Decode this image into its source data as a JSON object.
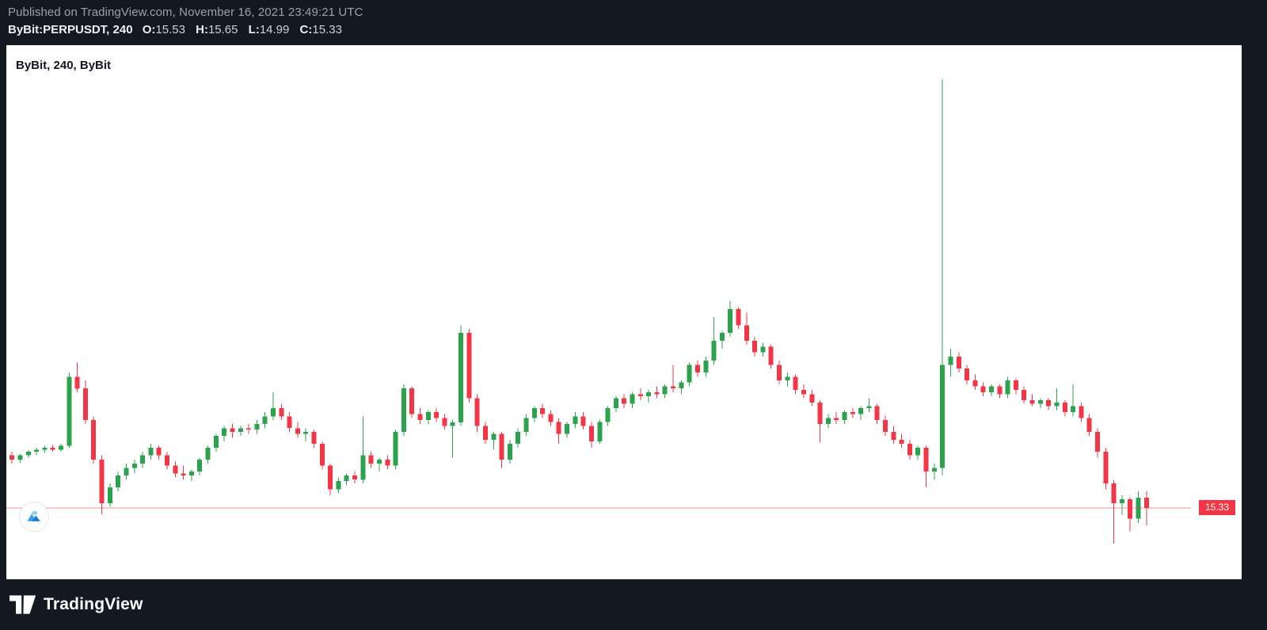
{
  "header": {
    "published_line": "Published on TradingView.com, November 16, 2021 23:49:21 UTC",
    "symbol": "ByBit:PERPUSDT, 240",
    "ohlc": {
      "o_label": "O:",
      "o_value": "15.53",
      "h_label": "H:",
      "h_value": "15.65",
      "l_label": "L:",
      "l_value": "14.99",
      "c_label": "C:",
      "c_value": "15.33"
    }
  },
  "chart": {
    "legend": "ByBit, 240, ByBit",
    "price_label": "15.33"
  },
  "footer": {
    "brand": "TradingView"
  },
  "icons": {
    "chart_logo": "tradingview-mountain-icon",
    "footer_logo": "tradingview-mark-icon"
  },
  "colors": {
    "up": "#2ba24c",
    "down": "#f23645",
    "price_line": "#f23645",
    "background": "#141820",
    "chart_bg": "#ffffff",
    "label_text": "#ffffff"
  },
  "chart_data": {
    "type": "candlestick",
    "title": "ByBit, 240, ByBit",
    "symbol": "ByBit:PERPUSDT",
    "exchange": "ByBit",
    "interval_minutes": 240,
    "published": "November 16, 2021 23:49:21 UTC",
    "last_candle": {
      "open": 15.53,
      "high": 15.65,
      "low": 14.99,
      "close": 15.33
    },
    "price_line": 15.33,
    "ylim": [
      14.3,
      23.9
    ],
    "grid": false,
    "legend_position": "top-left",
    "candles": [
      [
        16.35,
        16.42,
        16.19,
        16.27
      ],
      [
        16.27,
        16.38,
        16.21,
        16.35
      ],
      [
        16.35,
        16.46,
        16.3,
        16.42
      ],
      [
        16.42,
        16.5,
        16.35,
        16.46
      ],
      [
        16.46,
        16.54,
        16.4,
        16.5
      ],
      [
        16.5,
        16.55,
        16.42,
        16.46
      ],
      [
        16.46,
        16.58,
        16.42,
        16.54
      ],
      [
        16.54,
        17.96,
        16.5,
        17.88
      ],
      [
        17.88,
        18.15,
        17.58,
        17.65
      ],
      [
        17.65,
        17.81,
        16.96,
        17.04
      ],
      [
        17.04,
        17.11,
        16.19,
        16.27
      ],
      [
        16.27,
        16.35,
        15.21,
        15.42
      ],
      [
        15.42,
        15.81,
        15.35,
        15.73
      ],
      [
        15.73,
        16.04,
        15.65,
        15.96
      ],
      [
        15.96,
        16.19,
        15.88,
        16.11
      ],
      [
        16.11,
        16.27,
        16.0,
        16.19
      ],
      [
        16.19,
        16.42,
        16.11,
        16.35
      ],
      [
        16.35,
        16.58,
        16.27,
        16.5
      ],
      [
        16.5,
        16.54,
        16.27,
        16.35
      ],
      [
        16.35,
        16.42,
        16.08,
        16.15
      ],
      [
        16.15,
        16.23,
        15.92,
        16.0
      ],
      [
        16.0,
        16.15,
        15.88,
        15.96
      ],
      [
        15.96,
        16.08,
        15.85,
        16.04
      ],
      [
        16.04,
        16.31,
        15.96,
        16.27
      ],
      [
        16.27,
        16.54,
        16.19,
        16.5
      ],
      [
        16.5,
        16.77,
        16.42,
        16.73
      ],
      [
        16.73,
        16.92,
        16.62,
        16.88
      ],
      [
        16.88,
        16.96,
        16.69,
        16.81
      ],
      [
        16.81,
        16.92,
        16.73,
        16.88
      ],
      [
        16.88,
        16.96,
        16.77,
        16.85
      ],
      [
        16.85,
        17.04,
        16.77,
        16.96
      ],
      [
        16.96,
        17.19,
        16.88,
        17.11
      ],
      [
        17.11,
        17.58,
        17.04,
        17.27
      ],
      [
        17.27,
        17.35,
        17.04,
        17.11
      ],
      [
        17.11,
        17.19,
        16.81,
        16.88
      ],
      [
        16.88,
        17.0,
        16.69,
        16.77
      ],
      [
        16.77,
        16.88,
        16.62,
        16.81
      ],
      [
        16.81,
        16.85,
        16.5,
        16.58
      ],
      [
        16.58,
        16.62,
        16.08,
        16.15
      ],
      [
        16.15,
        16.19,
        15.58,
        15.69
      ],
      [
        15.69,
        15.92,
        15.62,
        15.85
      ],
      [
        15.85,
        16.0,
        15.77,
        15.96
      ],
      [
        15.96,
        16.04,
        15.81,
        15.88
      ],
      [
        15.88,
        17.11,
        15.81,
        16.35
      ],
      [
        16.35,
        16.42,
        16.11,
        16.19
      ],
      [
        16.19,
        16.31,
        16.04,
        16.27
      ],
      [
        16.27,
        16.35,
        16.08,
        16.15
      ],
      [
        16.15,
        16.85,
        16.08,
        16.81
      ],
      [
        16.81,
        17.73,
        16.73,
        17.65
      ],
      [
        17.65,
        17.69,
        17.08,
        17.15
      ],
      [
        17.15,
        17.27,
        16.96,
        17.04
      ],
      [
        17.04,
        17.23,
        16.96,
        17.19
      ],
      [
        17.19,
        17.27,
        17.0,
        17.08
      ],
      [
        17.08,
        17.15,
        16.85,
        16.92
      ],
      [
        16.92,
        17.04,
        16.31,
        16.99
      ],
      [
        16.99,
        18.88,
        16.92,
        18.73
      ],
      [
        18.73,
        18.81,
        17.38,
        17.46
      ],
      [
        17.46,
        17.54,
        16.81,
        16.92
      ],
      [
        16.92,
        17.0,
        16.58,
        16.65
      ],
      [
        16.65,
        16.81,
        16.46,
        16.77
      ],
      [
        16.77,
        16.81,
        16.11,
        16.27
      ],
      [
        16.27,
        16.65,
        16.19,
        16.58
      ],
      [
        16.58,
        16.88,
        16.5,
        16.81
      ],
      [
        16.81,
        17.15,
        16.73,
        17.08
      ],
      [
        17.08,
        17.31,
        17.0,
        17.27
      ],
      [
        17.27,
        17.35,
        17.08,
        17.15
      ],
      [
        17.15,
        17.23,
        16.92,
        17.0
      ],
      [
        17.0,
        17.08,
        16.58,
        16.77
      ],
      [
        16.77,
        17.0,
        16.69,
        16.96
      ],
      [
        16.96,
        17.19,
        16.88,
        17.11
      ],
      [
        17.11,
        17.19,
        16.85,
        16.92
      ],
      [
        16.92,
        17.0,
        16.5,
        16.62
      ],
      [
        16.62,
        17.04,
        16.58,
        17.0
      ],
      [
        17.0,
        17.31,
        16.92,
        17.27
      ],
      [
        17.27,
        17.5,
        17.19,
        17.46
      ],
      [
        17.46,
        17.54,
        17.27,
        17.35
      ],
      [
        17.35,
        17.58,
        17.27,
        17.54
      ],
      [
        17.54,
        17.65,
        17.42,
        17.5
      ],
      [
        17.5,
        17.62,
        17.38,
        17.58
      ],
      [
        17.58,
        17.69,
        17.46,
        17.54
      ],
      [
        17.54,
        17.73,
        17.46,
        17.69
      ],
      [
        17.69,
        18.11,
        17.58,
        17.65
      ],
      [
        17.65,
        17.81,
        17.54,
        17.77
      ],
      [
        17.77,
        18.15,
        17.69,
        18.11
      ],
      [
        18.11,
        18.19,
        17.88,
        17.96
      ],
      [
        17.96,
        18.27,
        17.88,
        18.19
      ],
      [
        18.19,
        19.04,
        18.11,
        18.58
      ],
      [
        18.58,
        18.77,
        18.42,
        18.73
      ],
      [
        18.73,
        19.35,
        18.65,
        19.19
      ],
      [
        19.19,
        19.23,
        18.81,
        18.88
      ],
      [
        18.88,
        19.12,
        18.5,
        18.58
      ],
      [
        18.58,
        18.65,
        18.27,
        18.35
      ],
      [
        18.35,
        18.54,
        18.27,
        18.46
      ],
      [
        18.46,
        18.5,
        18.04,
        18.11
      ],
      [
        18.11,
        18.19,
        17.73,
        17.81
      ],
      [
        17.81,
        17.96,
        17.69,
        17.88
      ],
      [
        17.88,
        17.92,
        17.54,
        17.62
      ],
      [
        17.62,
        17.73,
        17.46,
        17.54
      ],
      [
        17.54,
        17.62,
        17.31,
        17.38
      ],
      [
        17.38,
        17.42,
        16.61,
        16.96
      ],
      [
        16.96,
        17.15,
        16.88,
        17.08
      ],
      [
        17.08,
        17.19,
        16.96,
        17.04
      ],
      [
        17.04,
        17.23,
        16.96,
        17.19
      ],
      [
        17.19,
        17.27,
        17.08,
        17.15
      ],
      [
        17.15,
        17.31,
        17.04,
        17.27
      ],
      [
        17.27,
        17.46,
        17.19,
        17.31
      ],
      [
        17.31,
        17.35,
        16.96,
        17.04
      ],
      [
        17.04,
        17.12,
        16.73,
        16.81
      ],
      [
        16.81,
        16.92,
        16.58,
        16.65
      ],
      [
        16.65,
        16.77,
        16.5,
        16.58
      ],
      [
        16.58,
        16.65,
        16.27,
        16.35
      ],
      [
        16.35,
        16.54,
        16.27,
        16.5
      ],
      [
        16.5,
        16.54,
        15.73,
        16.04
      ],
      [
        16.04,
        16.19,
        15.88,
        16.11
      ],
      [
        16.11,
        23.65,
        15.96,
        18.11
      ],
      [
        18.11,
        18.42,
        17.88,
        18.27
      ],
      [
        18.27,
        18.35,
        17.96,
        18.04
      ],
      [
        18.04,
        18.11,
        17.73,
        17.81
      ],
      [
        17.81,
        17.92,
        17.62,
        17.69
      ],
      [
        17.69,
        17.77,
        17.5,
        17.58
      ],
      [
        17.58,
        17.73,
        17.5,
        17.69
      ],
      [
        17.69,
        17.73,
        17.46,
        17.54
      ],
      [
        17.54,
        17.88,
        17.46,
        17.81
      ],
      [
        17.81,
        17.85,
        17.54,
        17.62
      ],
      [
        17.62,
        17.69,
        17.35,
        17.42
      ],
      [
        17.42,
        17.54,
        17.31,
        17.35
      ],
      [
        17.35,
        17.46,
        17.27,
        17.42
      ],
      [
        17.42,
        17.46,
        17.23,
        17.31
      ],
      [
        17.31,
        17.65,
        17.23,
        17.38
      ],
      [
        17.38,
        17.42,
        17.11,
        17.19
      ],
      [
        17.19,
        17.73,
        17.11,
        17.31
      ],
      [
        17.31,
        17.38,
        17.0,
        17.08
      ],
      [
        17.08,
        17.15,
        16.73,
        16.81
      ],
      [
        16.81,
        16.88,
        16.31,
        16.42
      ],
      [
        16.42,
        16.5,
        15.69,
        15.81
      ],
      [
        15.81,
        15.88,
        14.64,
        15.42
      ],
      [
        15.42,
        15.58,
        15.19,
        15.5
      ],
      [
        15.5,
        15.54,
        14.88,
        15.12
      ],
      [
        15.12,
        15.65,
        15.04,
        15.53
      ],
      [
        15.53,
        15.65,
        14.99,
        15.33
      ]
    ]
  }
}
